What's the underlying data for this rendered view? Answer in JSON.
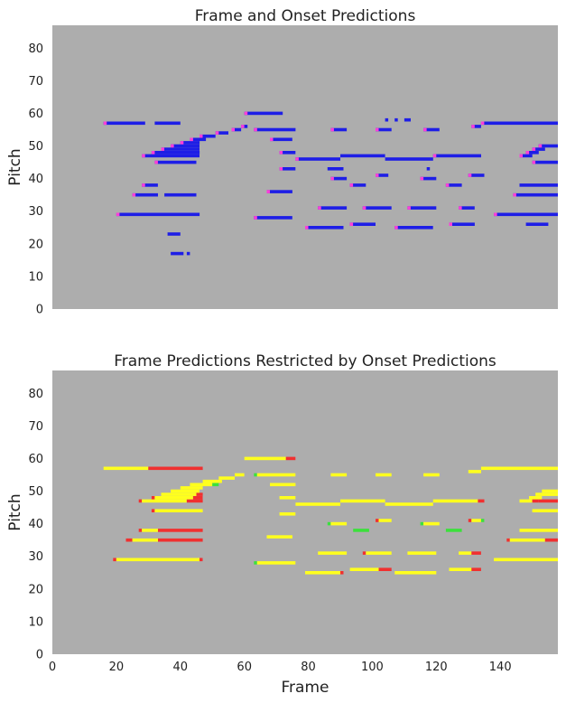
{
  "chart_data": [
    {
      "type": "heatmap",
      "title": "Frame and Onset Predictions",
      "xlabel": "",
      "ylabel": "Pitch",
      "xlim": [
        0,
        158
      ],
      "ylim": [
        0,
        87
      ],
      "x_ticks": [],
      "y_ticks": [
        0,
        10,
        20,
        30,
        40,
        50,
        60,
        70,
        80
      ],
      "background": "#adadad",
      "colors": {
        "frame": "#1e1ee6",
        "onset": "#ff3fd8"
      },
      "notes": [
        {
          "pitch": 57,
          "start": 16,
          "end": 29,
          "onset": true
        },
        {
          "pitch": 57,
          "start": 32,
          "end": 40,
          "onset": false
        },
        {
          "pitch": 47,
          "start": 28,
          "end": 46,
          "onset": true
        },
        {
          "pitch": 48,
          "start": 31,
          "end": 46,
          "onset": true
        },
        {
          "pitch": 49,
          "start": 34,
          "end": 46,
          "onset": true
        },
        {
          "pitch": 50,
          "start": 37,
          "end": 46,
          "onset": true
        },
        {
          "pitch": 51,
          "start": 40,
          "end": 46,
          "onset": true
        },
        {
          "pitch": 52,
          "start": 43,
          "end": 48,
          "onset": true
        },
        {
          "pitch": 53,
          "start": 46,
          "end": 51,
          "onset": true
        },
        {
          "pitch": 54,
          "start": 51,
          "end": 55,
          "onset": true
        },
        {
          "pitch": 55,
          "start": 56,
          "end": 59,
          "onset": true
        },
        {
          "pitch": 56,
          "start": 59,
          "end": 61,
          "onset": true
        },
        {
          "pitch": 45,
          "start": 32,
          "end": 45,
          "onset": true
        },
        {
          "pitch": 38,
          "start": 28,
          "end": 33,
          "onset": true
        },
        {
          "pitch": 35,
          "start": 25,
          "end": 33,
          "onset": true
        },
        {
          "pitch": 35,
          "start": 35,
          "end": 45,
          "onset": false
        },
        {
          "pitch": 29,
          "start": 20,
          "end": 46,
          "onset": true
        },
        {
          "pitch": 23,
          "start": 36,
          "end": 40,
          "onset": false
        },
        {
          "pitch": 17,
          "start": 37,
          "end": 41,
          "onset": false
        },
        {
          "pitch": 17,
          "start": 42,
          "end": 43,
          "onset": false
        },
        {
          "pitch": 60,
          "start": 60,
          "end": 72,
          "onset": true
        },
        {
          "pitch": 55,
          "start": 63,
          "end": 76,
          "onset": true
        },
        {
          "pitch": 52,
          "start": 68,
          "end": 75,
          "onset": true
        },
        {
          "pitch": 48,
          "start": 71,
          "end": 76,
          "onset": true
        },
        {
          "pitch": 43,
          "start": 71,
          "end": 76,
          "onset": true
        },
        {
          "pitch": 36,
          "start": 67,
          "end": 75,
          "onset": true
        },
        {
          "pitch": 28,
          "start": 63,
          "end": 75,
          "onset": true
        },
        {
          "pitch": 46,
          "start": 76,
          "end": 90,
          "onset": true
        },
        {
          "pitch": 47,
          "start": 90,
          "end": 104,
          "onset": false
        },
        {
          "pitch": 46,
          "start": 104,
          "end": 119,
          "onset": false
        },
        {
          "pitch": 47,
          "start": 119,
          "end": 134,
          "onset": true
        },
        {
          "pitch": 55,
          "start": 87,
          "end": 92,
          "onset": true
        },
        {
          "pitch": 55,
          "start": 101,
          "end": 106,
          "onset": true
        },
        {
          "pitch": 58,
          "start": 104,
          "end": 105,
          "onset": false
        },
        {
          "pitch": 58,
          "start": 107,
          "end": 108,
          "onset": false
        },
        {
          "pitch": 58,
          "start": 110,
          "end": 112,
          "onset": false
        },
        {
          "pitch": 55,
          "start": 116,
          "end": 121,
          "onset": true
        },
        {
          "pitch": 43,
          "start": 86,
          "end": 91,
          "onset": false
        },
        {
          "pitch": 40,
          "start": 87,
          "end": 92,
          "onset": true
        },
        {
          "pitch": 38,
          "start": 93,
          "end": 98,
          "onset": true
        },
        {
          "pitch": 41,
          "start": 101,
          "end": 105,
          "onset": true
        },
        {
          "pitch": 40,
          "start": 115,
          "end": 120,
          "onset": true
        },
        {
          "pitch": 43,
          "start": 117,
          "end": 118,
          "onset": false
        },
        {
          "pitch": 38,
          "start": 123,
          "end": 128,
          "onset": true
        },
        {
          "pitch": 41,
          "start": 130,
          "end": 135,
          "onset": true
        },
        {
          "pitch": 31,
          "start": 83,
          "end": 92,
          "onset": true
        },
        {
          "pitch": 31,
          "start": 97,
          "end": 106,
          "onset": true
        },
        {
          "pitch": 31,
          "start": 111,
          "end": 120,
          "onset": true
        },
        {
          "pitch": 31,
          "start": 127,
          "end": 132,
          "onset": true
        },
        {
          "pitch": 25,
          "start": 79,
          "end": 91,
          "onset": true
        },
        {
          "pitch": 26,
          "start": 93,
          "end": 101,
          "onset": true
        },
        {
          "pitch": 25,
          "start": 107,
          "end": 119,
          "onset": true
        },
        {
          "pitch": 26,
          "start": 124,
          "end": 132,
          "onset": true
        },
        {
          "pitch": 56,
          "start": 131,
          "end": 134,
          "onset": true
        },
        {
          "pitch": 57,
          "start": 134,
          "end": 158,
          "onset": true
        },
        {
          "pitch": 47,
          "start": 146,
          "end": 150,
          "onset": true
        },
        {
          "pitch": 48,
          "start": 148,
          "end": 152,
          "onset": true
        },
        {
          "pitch": 49,
          "start": 150,
          "end": 154,
          "onset": true
        },
        {
          "pitch": 50,
          "start": 152,
          "end": 158,
          "onset": true
        },
        {
          "pitch": 45,
          "start": 150,
          "end": 158,
          "onset": true
        },
        {
          "pitch": 38,
          "start": 146,
          "end": 158,
          "onset": false
        },
        {
          "pitch": 35,
          "start": 144,
          "end": 158,
          "onset": true
        },
        {
          "pitch": 29,
          "start": 138,
          "end": 158,
          "onset": true
        },
        {
          "pitch": 26,
          "start": 148,
          "end": 155,
          "onset": false
        }
      ]
    },
    {
      "type": "heatmap",
      "title": "Frame Predictions Restricted by Onset Predictions",
      "xlabel": "Frame",
      "ylabel": "Pitch",
      "xlim": [
        0,
        158
      ],
      "ylim": [
        0,
        87
      ],
      "x_ticks": [
        0,
        20,
        40,
        60,
        80,
        100,
        120,
        140
      ],
      "y_ticks": [
        0,
        10,
        20,
        30,
        40,
        50,
        60,
        70,
        80
      ],
      "background": "#adadad",
      "colors": {
        "yellow": "#ffff1e",
        "red": "#f03030",
        "green": "#3ce03c",
        "olive": "#c8c82d"
      },
      "notes": [
        {
          "pitch": 57,
          "start": 16,
          "end": 30,
          "color": "yellow"
        },
        {
          "pitch": 57,
          "start": 30,
          "end": 47,
          "color": "red"
        },
        {
          "pitch": 47,
          "start": 27,
          "end": 28,
          "color": "red"
        },
        {
          "pitch": 47,
          "start": 28,
          "end": 42,
          "color": "yellow"
        },
        {
          "pitch": 47,
          "start": 42,
          "end": 47,
          "color": "red"
        },
        {
          "pitch": 48,
          "start": 31,
          "end": 32,
          "color": "red"
        },
        {
          "pitch": 48,
          "start": 32,
          "end": 44,
          "color": "yellow"
        },
        {
          "pitch": 48,
          "start": 44,
          "end": 47,
          "color": "red"
        },
        {
          "pitch": 49,
          "start": 34,
          "end": 45,
          "color": "yellow"
        },
        {
          "pitch": 49,
          "start": 45,
          "end": 47,
          "color": "red"
        },
        {
          "pitch": 50,
          "start": 37,
          "end": 46,
          "color": "yellow"
        },
        {
          "pitch": 51,
          "start": 40,
          "end": 47,
          "color": "yellow"
        },
        {
          "pitch": 52,
          "start": 43,
          "end": 50,
          "color": "yellow"
        },
        {
          "pitch": 52,
          "start": 50,
          "end": 52,
          "color": "green"
        },
        {
          "pitch": 53,
          "start": 47,
          "end": 53,
          "color": "yellow"
        },
        {
          "pitch": 54,
          "start": 52,
          "end": 57,
          "color": "yellow"
        },
        {
          "pitch": 55,
          "start": 57,
          "end": 60,
          "color": "yellow"
        },
        {
          "pitch": 44,
          "start": 31,
          "end": 32,
          "color": "red"
        },
        {
          "pitch": 44,
          "start": 32,
          "end": 47,
          "color": "yellow"
        },
        {
          "pitch": 38,
          "start": 27,
          "end": 28,
          "color": "red"
        },
        {
          "pitch": 38,
          "start": 28,
          "end": 33,
          "color": "yellow"
        },
        {
          "pitch": 38,
          "start": 33,
          "end": 47,
          "color": "red"
        },
        {
          "pitch": 35,
          "start": 23,
          "end": 25,
          "color": "red"
        },
        {
          "pitch": 35,
          "start": 25,
          "end": 33,
          "color": "yellow"
        },
        {
          "pitch": 35,
          "start": 33,
          "end": 47,
          "color": "red"
        },
        {
          "pitch": 29,
          "start": 19,
          "end": 20,
          "color": "red"
        },
        {
          "pitch": 29,
          "start": 20,
          "end": 46,
          "color": "yellow"
        },
        {
          "pitch": 29,
          "start": 46,
          "end": 47,
          "color": "red"
        },
        {
          "pitch": 60,
          "start": 60,
          "end": 73,
          "color": "yellow"
        },
        {
          "pitch": 60,
          "start": 73,
          "end": 76,
          "color": "red"
        },
        {
          "pitch": 55,
          "start": 63,
          "end": 64,
          "color": "green"
        },
        {
          "pitch": 55,
          "start": 64,
          "end": 76,
          "color": "yellow"
        },
        {
          "pitch": 52,
          "start": 68,
          "end": 76,
          "color": "yellow"
        },
        {
          "pitch": 48,
          "start": 71,
          "end": 76,
          "color": "yellow"
        },
        {
          "pitch": 43,
          "start": 71,
          "end": 76,
          "color": "yellow"
        },
        {
          "pitch": 36,
          "start": 67,
          "end": 75,
          "color": "yellow"
        },
        {
          "pitch": 28,
          "start": 63,
          "end": 64,
          "color": "green"
        },
        {
          "pitch": 28,
          "start": 64,
          "end": 76,
          "color": "yellow"
        },
        {
          "pitch": 46,
          "start": 76,
          "end": 90,
          "color": "yellow"
        },
        {
          "pitch": 47,
          "start": 90,
          "end": 104,
          "color": "yellow"
        },
        {
          "pitch": 46,
          "start": 104,
          "end": 119,
          "color": "yellow"
        },
        {
          "pitch": 47,
          "start": 119,
          "end": 133,
          "color": "yellow"
        },
        {
          "pitch": 47,
          "start": 133,
          "end": 135,
          "color": "red"
        },
        {
          "pitch": 55,
          "start": 87,
          "end": 92,
          "color": "yellow"
        },
        {
          "pitch": 55,
          "start": 101,
          "end": 106,
          "color": "yellow"
        },
        {
          "pitch": 55,
          "start": 116,
          "end": 121,
          "color": "yellow"
        },
        {
          "pitch": 40,
          "start": 86,
          "end": 87,
          "color": "green"
        },
        {
          "pitch": 40,
          "start": 87,
          "end": 92,
          "color": "yellow"
        },
        {
          "pitch": 38,
          "start": 94,
          "end": 99,
          "color": "green"
        },
        {
          "pitch": 41,
          "start": 101,
          "end": 102,
          "color": "red"
        },
        {
          "pitch": 41,
          "start": 102,
          "end": 106,
          "color": "yellow"
        },
        {
          "pitch": 40,
          "start": 115,
          "end": 116,
          "color": "green"
        },
        {
          "pitch": 40,
          "start": 116,
          "end": 121,
          "color": "yellow"
        },
        {
          "pitch": 38,
          "start": 123,
          "end": 128,
          "color": "green"
        },
        {
          "pitch": 41,
          "start": 130,
          "end": 131,
          "color": "red"
        },
        {
          "pitch": 41,
          "start": 131,
          "end": 134,
          "color": "yellow"
        },
        {
          "pitch": 41,
          "start": 134,
          "end": 135,
          "color": "green"
        },
        {
          "pitch": 31,
          "start": 83,
          "end": 92,
          "color": "yellow"
        },
        {
          "pitch": 31,
          "start": 97,
          "end": 98,
          "color": "red"
        },
        {
          "pitch": 31,
          "start": 98,
          "end": 106,
          "color": "yellow"
        },
        {
          "pitch": 31,
          "start": 111,
          "end": 120,
          "color": "yellow"
        },
        {
          "pitch": 31,
          "start": 127,
          "end": 131,
          "color": "yellow"
        },
        {
          "pitch": 31,
          "start": 131,
          "end": 134,
          "color": "red"
        },
        {
          "pitch": 25,
          "start": 79,
          "end": 90,
          "color": "yellow"
        },
        {
          "pitch": 25,
          "start": 90,
          "end": 91,
          "color": "red"
        },
        {
          "pitch": 26,
          "start": 93,
          "end": 102,
          "color": "yellow"
        },
        {
          "pitch": 26,
          "start": 102,
          "end": 106,
          "color": "red"
        },
        {
          "pitch": 25,
          "start": 107,
          "end": 120,
          "color": "yellow"
        },
        {
          "pitch": 26,
          "start": 124,
          "end": 131,
          "color": "yellow"
        },
        {
          "pitch": 26,
          "start": 131,
          "end": 134,
          "color": "red"
        },
        {
          "pitch": 56,
          "start": 130,
          "end": 134,
          "color": "yellow"
        },
        {
          "pitch": 57,
          "start": 134,
          "end": 158,
          "color": "yellow"
        },
        {
          "pitch": 47,
          "start": 146,
          "end": 150,
          "color": "yellow"
        },
        {
          "pitch": 47,
          "start": 150,
          "end": 152,
          "color": "red"
        },
        {
          "pitch": 47,
          "start": 152,
          "end": 158,
          "color": "red"
        },
        {
          "pitch": 48,
          "start": 149,
          "end": 153,
          "color": "yellow"
        },
        {
          "pitch": 49,
          "start": 151,
          "end": 158,
          "color": "yellow"
        },
        {
          "pitch": 50,
          "start": 153,
          "end": 158,
          "color": "yellow"
        },
        {
          "pitch": 44,
          "start": 150,
          "end": 158,
          "color": "yellow"
        },
        {
          "pitch": 38,
          "start": 146,
          "end": 158,
          "color": "yellow"
        },
        {
          "pitch": 35,
          "start": 142,
          "end": 143,
          "color": "red"
        },
        {
          "pitch": 35,
          "start": 143,
          "end": 154,
          "color": "yellow"
        },
        {
          "pitch": 35,
          "start": 154,
          "end": 158,
          "color": "red"
        },
        {
          "pitch": 29,
          "start": 138,
          "end": 158,
          "color": "yellow"
        }
      ]
    }
  ]
}
